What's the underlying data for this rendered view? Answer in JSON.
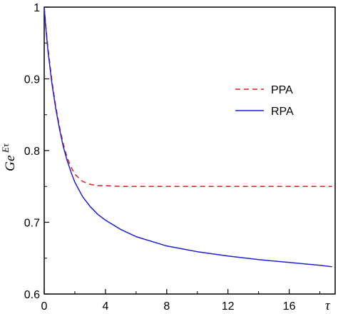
{
  "chart_data": {
    "type": "line",
    "title": "",
    "xlabel": "τ",
    "ylabel": {
      "base": "G",
      "exp": "e",
      "sup": "Eτ"
    },
    "xlim": [
      0,
      19
    ],
    "ylim": [
      0.6,
      1.0
    ],
    "xticks": [
      0,
      4,
      8,
      12,
      16
    ],
    "yticks": [
      0.6,
      0.7,
      0.8,
      0.9,
      1.0
    ],
    "xtick_labels": [
      "0",
      "4",
      "8",
      "12",
      "16"
    ],
    "ytick_labels": [
      "0.6",
      "0.7",
      "0.8",
      "0.9",
      "1"
    ],
    "grid": false,
    "legend_position": "right",
    "series": [
      {
        "name": "PPA",
        "color": "#e41a1c",
        "style": "dashed",
        "x": [
          0,
          0.1,
          0.25,
          0.5,
          0.75,
          1.0,
          1.25,
          1.5,
          1.75,
          2.0,
          2.5,
          3.0,
          3.5,
          4.0,
          5.0,
          6.0,
          8.0,
          10.0,
          12.0,
          14.0,
          16.0,
          18.0,
          18.8
        ],
        "y": [
          1.0,
          0.975,
          0.942,
          0.898,
          0.862,
          0.833,
          0.809,
          0.79,
          0.777,
          0.767,
          0.757,
          0.753,
          0.751,
          0.751,
          0.75,
          0.75,
          0.75,
          0.75,
          0.75,
          0.75,
          0.75,
          0.75,
          0.75
        ]
      },
      {
        "name": "RPA",
        "color": "#1f1fd6",
        "style": "solid",
        "x": [
          0,
          0.1,
          0.25,
          0.5,
          0.75,
          1.0,
          1.25,
          1.5,
          1.75,
          2.0,
          2.5,
          3.0,
          3.5,
          4.0,
          5.0,
          6.0,
          8.0,
          10.0,
          12.0,
          14.0,
          16.0,
          18.0,
          18.8
        ],
        "y": [
          1.0,
          0.972,
          0.938,
          0.894,
          0.859,
          0.83,
          0.805,
          0.786,
          0.77,
          0.756,
          0.736,
          0.722,
          0.711,
          0.703,
          0.69,
          0.68,
          0.667,
          0.659,
          0.653,
          0.648,
          0.644,
          0.64,
          0.638
        ]
      }
    ]
  }
}
